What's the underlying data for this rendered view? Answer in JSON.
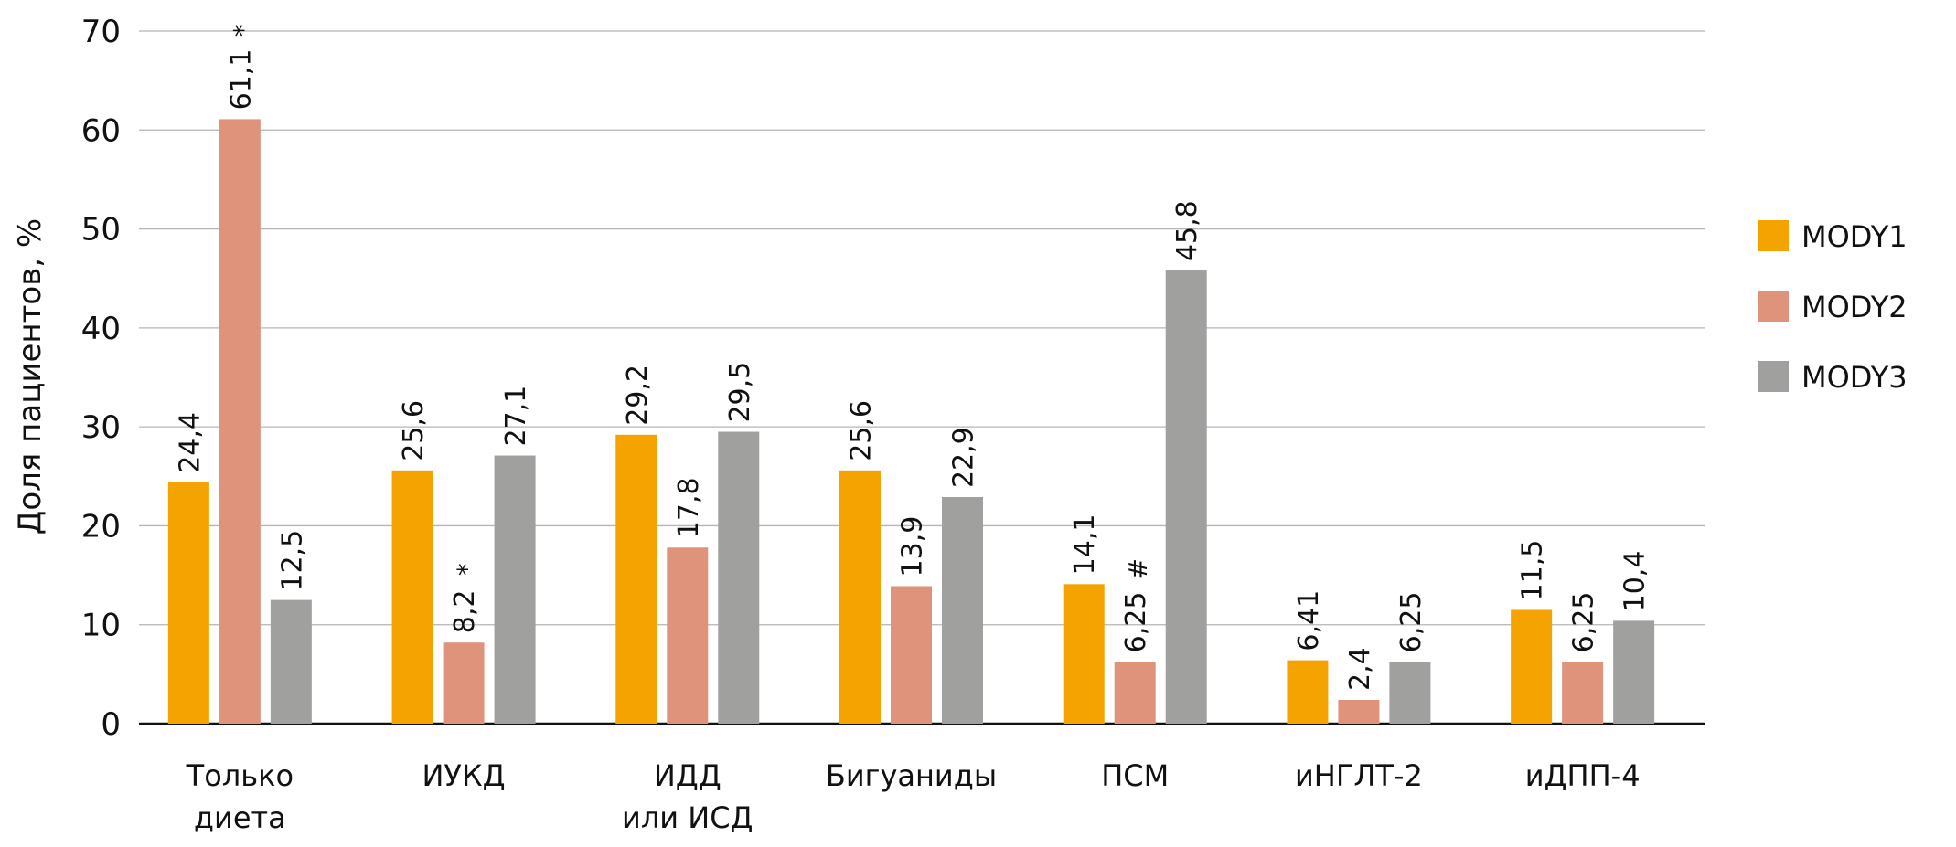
{
  "chart_data": {
    "type": "bar",
    "title": "",
    "xlabel": "",
    "ylabel": "Доля пациентов, %",
    "ylim": [
      0,
      70
    ],
    "yticks": [
      0,
      10,
      20,
      30,
      40,
      50,
      60,
      70
    ],
    "grid": true,
    "legend_position": "right",
    "categories": [
      [
        "Только",
        "диета"
      ],
      [
        "ИУКД"
      ],
      [
        "ИДД",
        "или ИСД"
      ],
      [
        "Бигуаниды"
      ],
      [
        "ПСМ"
      ],
      [
        "иНГЛТ-2"
      ],
      [
        "иДПП-4"
      ]
    ],
    "series": [
      {
        "name": "MODY1",
        "color": "#F5A300",
        "values": [
          24.4,
          25.6,
          29.2,
          25.6,
          14.1,
          6.41,
          11.5
        ],
        "labels": [
          "24,4",
          "25,6",
          "29,2",
          "25,6",
          "14,1",
          "6,41",
          "11,5"
        ],
        "marks": [
          "",
          "",
          "",
          "",
          "",
          "",
          ""
        ]
      },
      {
        "name": "MODY2",
        "color": "#E0937B",
        "values": [
          61.1,
          8.2,
          17.8,
          13.9,
          6.25,
          2.4,
          6.25
        ],
        "labels": [
          "61,1",
          "8,2",
          "17,8",
          "13,9",
          "6,25",
          "2,4",
          "6,25"
        ],
        "marks": [
          "*",
          "*",
          "",
          "",
          "#",
          "",
          ""
        ]
      },
      {
        "name": "MODY3",
        "color": "#A0A09F",
        "values": [
          12.5,
          27.1,
          29.5,
          22.9,
          45.8,
          6.25,
          10.4
        ],
        "labels": [
          "12,5",
          "27,1",
          "29,5",
          "22,9",
          "45,8",
          "6,25",
          "10,4"
        ],
        "marks": [
          "",
          "",
          "",
          "",
          "",
          "",
          ""
        ]
      }
    ]
  }
}
